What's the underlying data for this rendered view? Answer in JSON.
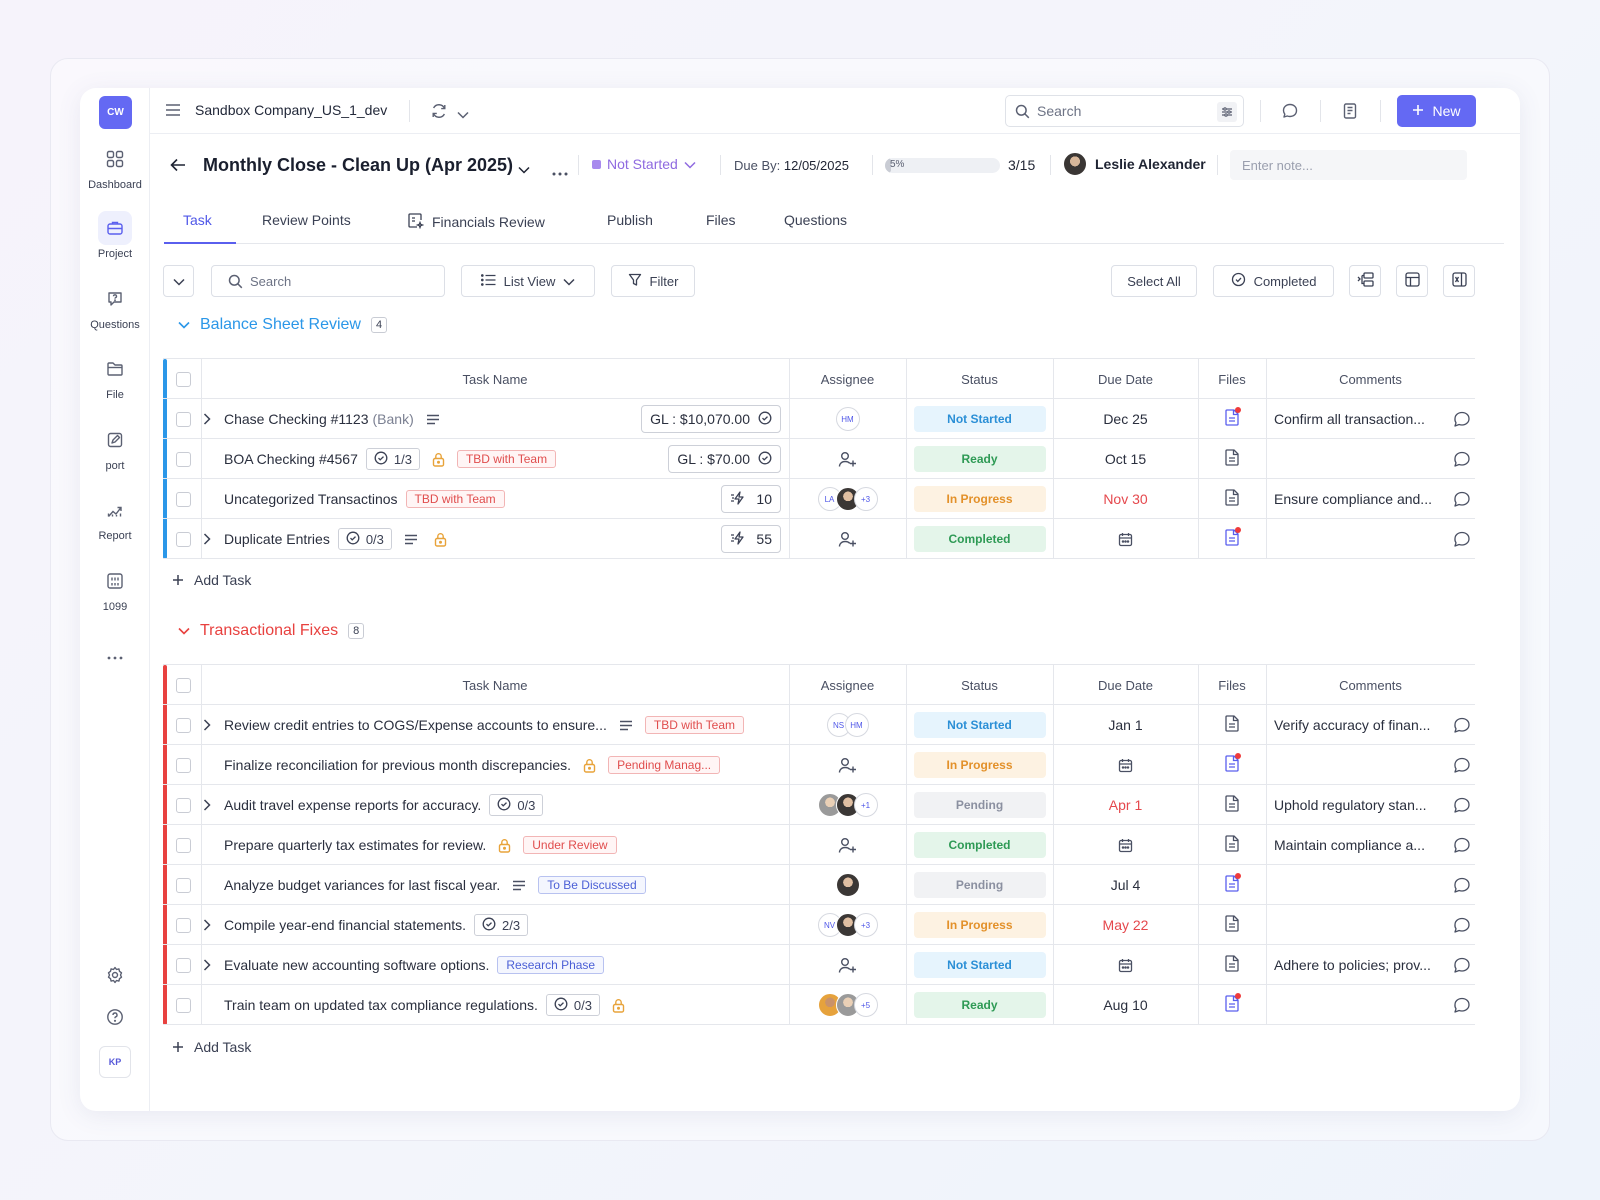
{
  "app": {
    "logo": "CW",
    "company": "Sandbox Company_US_1_dev",
    "search_placeholder": "Search",
    "new_label": "New",
    "user_initials": "KP"
  },
  "sidebar": {
    "items": [
      {
        "label": "Dashboard",
        "icon": "grid-icon"
      },
      {
        "label": "Project",
        "icon": "briefcase-icon"
      },
      {
        "label": "Questions",
        "icon": "question-bubble-icon"
      },
      {
        "label": "File",
        "icon": "folder-icon"
      },
      {
        "label": "port",
        "icon": "edit-document-icon"
      },
      {
        "label": "Report",
        "icon": "chart-line-icon"
      },
      {
        "label": "1099",
        "icon": "form-grid-icon"
      }
    ]
  },
  "project": {
    "title": "Monthly Close - Clean Up (Apr 2025)",
    "status": "Not Started",
    "due_by_label": "Due By:",
    "due_by": "12/05/2025",
    "progress": 5,
    "progress_label": "5%",
    "task_count": "3/15",
    "owner": "Leslie Alexander",
    "note_placeholder": "Enter note..."
  },
  "tabs": [
    "Task",
    "Review Points",
    "Financials Review",
    "Publish",
    "Files",
    "Questions"
  ],
  "toolbar": {
    "search_placeholder": "Search",
    "view_label": "List View",
    "filter_label": "Filter",
    "select_all_label": "Select All",
    "completed_label": "Completed"
  },
  "columns": [
    "Task Name",
    "Assignee",
    "Status",
    "Due Date",
    "Files",
    "Comments"
  ],
  "add_task_label": "Add Task",
  "groups": [
    {
      "name": "Balance Sheet Review",
      "count": "4",
      "color": "#2b97e8",
      "rows": [
        {
          "expand": true,
          "name": "Chase Checking #1123",
          "suffix": "(Bank)",
          "desc": true,
          "gl": "GL :  $10,070.00",
          "assignee": [
            "HM"
          ],
          "status": "Not Started",
          "due": "Dec 25",
          "file_alert": true,
          "comment": "Confirm all transaction..."
        },
        {
          "expand": false,
          "name": "BOA Checking #4567",
          "sub": "1/3",
          "lock": true,
          "tag": "TBD with Team",
          "tag_color": "red",
          "gl": "GL :  $70.00",
          "assignee": [],
          "status": "Ready",
          "due": "Oct 15",
          "file_alert": false,
          "comment": ""
        },
        {
          "expand": false,
          "name": "Uncategorized Transactinos",
          "tag": "TBD with Team",
          "tag_color": "red",
          "badge": "10",
          "assignee": [
            "LA",
            "photo",
            "+3"
          ],
          "status": "In Progress",
          "due": "Nov 30",
          "due_red": true,
          "file_alert": false,
          "comment": "Ensure compliance and..."
        },
        {
          "expand": true,
          "name": "Duplicate Entries",
          "sub": "0/3",
          "desc": true,
          "lock": true,
          "badge": "55",
          "assignee": [],
          "status": "Completed",
          "due": "",
          "file_alert": true,
          "comment": ""
        }
      ]
    },
    {
      "name": "Transactional Fixes",
      "count": "8",
      "color": "#e8413f",
      "rows": [
        {
          "expand": true,
          "name": "Review credit entries to COGS/Expense accounts to ensure...",
          "desc": true,
          "tag": "TBD with Team",
          "tag_color": "red",
          "assignee": [
            "NS",
            "HM"
          ],
          "status": "Not Started",
          "due": "Jan 1",
          "file_alert": false,
          "comment": "Verify accuracy of finan..."
        },
        {
          "expand": false,
          "name": "Finalize reconciliation for previous month discrepancies.",
          "lock": true,
          "tag": "Pending Manag...",
          "tag_color": "red",
          "assignee": [],
          "status": "In Progress",
          "due": "",
          "file_alert": true,
          "comment": ""
        },
        {
          "expand": true,
          "name": "Audit travel expense reports for accuracy.",
          "sub": "0/3",
          "assignee": [
            "photo2",
            "photo",
            "+1"
          ],
          "status": "Pending",
          "due": "Apr 1",
          "due_red": true,
          "file_alert": false,
          "comment": "Uphold regulatory stan..."
        },
        {
          "expand": false,
          "name": "Prepare quarterly tax estimates for review.",
          "lock": true,
          "tag": "Under Review",
          "tag_color": "red",
          "assignee": [],
          "status": "Completed",
          "due": "",
          "file_alert": false,
          "comment": "Maintain compliance a..."
        },
        {
          "expand": false,
          "name": "Analyze budget variances for last fiscal year.",
          "desc": true,
          "tag": "To Be Discussed",
          "tag_color": "blue",
          "assignee": [
            "photo"
          ],
          "status": "Pending",
          "due": "Jul 4",
          "file_alert": true,
          "comment": ""
        },
        {
          "expand": true,
          "name": "Compile year-end financial statements.",
          "sub": "2/3",
          "assignee": [
            "NV",
            "photo",
            "+3"
          ],
          "status": "In Progress",
          "due": "May 22",
          "due_red": true,
          "file_alert": false,
          "comment": ""
        },
        {
          "expand": true,
          "name": "Evaluate new accounting software options.",
          "tag": "Research Phase",
          "tag_color": "blue",
          "assignee": [],
          "status": "Not Started",
          "due": "",
          "file_alert": false,
          "comment": "Adhere to policies; prov..."
        },
        {
          "expand": false,
          "name": "Train team on updated tax compliance regulations.",
          "sub": "0/3",
          "lock": true,
          "assignee": [
            "photo3",
            "photo2",
            "+5"
          ],
          "status": "Ready",
          "due": "Aug 10",
          "file_alert": true,
          "comment": ""
        }
      ]
    }
  ]
}
